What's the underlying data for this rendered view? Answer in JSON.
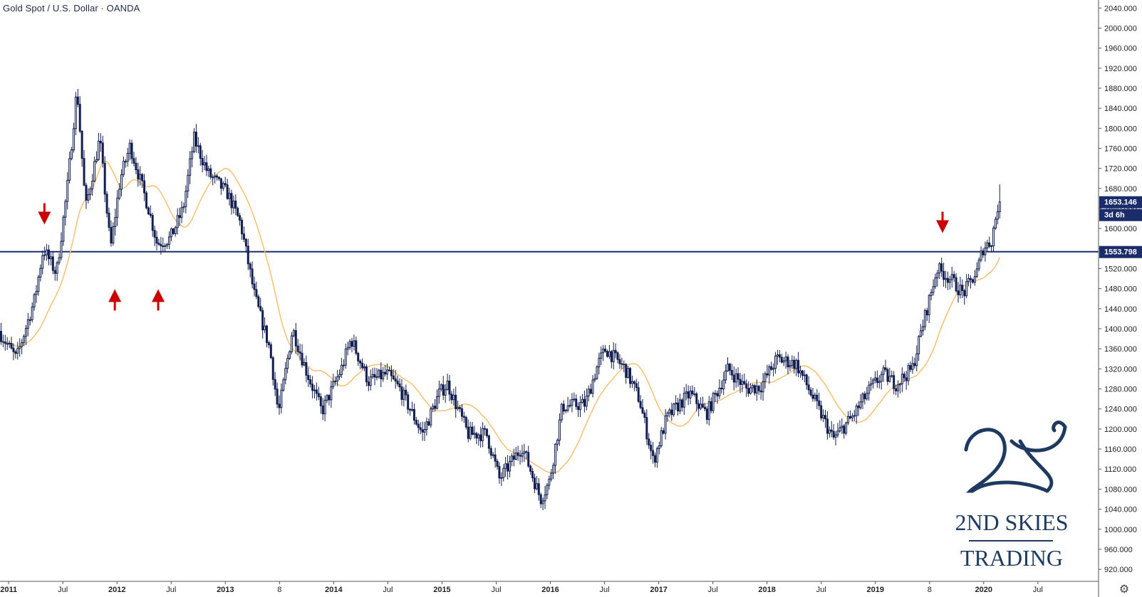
{
  "header": {
    "title": "Gold Spot / U.S. Dollar · OANDA"
  },
  "watermark": {
    "line1": "2ND SKIES",
    "line2": "TRADING",
    "logo_glyph": "2S"
  },
  "colors": {
    "candle": "#131f4f",
    "ma": "#f5c071",
    "level": "#1b2c6b",
    "arrow": "#cc0000",
    "axis_text": "#222222",
    "brand": "#1e3a5f"
  },
  "price_labels": {
    "last": "1653.146",
    "countdown": "3d 6h",
    "level": "1553.798"
  },
  "icons": {
    "settings": "gear-icon"
  },
  "chart_data": {
    "type": "candlestick",
    "title": "Gold Spot / U.S. Dollar · OANDA",
    "ylim": [
      896,
      2056
    ],
    "y_ticks": [
      920,
      960,
      1000,
      1040,
      1080,
      1120,
      1160,
      1200,
      1240,
      1280,
      1320,
      1360,
      1400,
      1440,
      1480,
      1520,
      1560,
      1600,
      1640,
      1680,
      1720,
      1760,
      1800,
      1840,
      1880,
      1920,
      1960,
      2000,
      2040
    ],
    "x_range": [
      2010.92,
      2021.06
    ],
    "x_ticks": [
      {
        "label": "2011",
        "t": 2011.0
      },
      {
        "label": "Jul",
        "t": 2011.5
      },
      {
        "label": "2012",
        "t": 2012.0
      },
      {
        "label": "Jul",
        "t": 2012.5
      },
      {
        "label": "2013",
        "t": 2013.0
      },
      {
        "label": "8",
        "t": 2013.5
      },
      {
        "label": "2014",
        "t": 2014.0
      },
      {
        "label": "Jul",
        "t": 2014.5
      },
      {
        "label": "2015",
        "t": 2015.0
      },
      {
        "label": "Jul",
        "t": 2015.5
      },
      {
        "label": "2016",
        "t": 2016.0
      },
      {
        "label": "Jul",
        "t": 2016.5
      },
      {
        "label": "2017",
        "t": 2017.0
      },
      {
        "label": "Jul",
        "t": 2017.5
      },
      {
        "label": "2018",
        "t": 2018.0
      },
      {
        "label": "Jul",
        "t": 2018.5
      },
      {
        "label": "2019",
        "t": 2019.0
      },
      {
        "label": "8",
        "t": 2019.5
      },
      {
        "label": "2020",
        "t": 2020.0
      },
      {
        "label": "Jul",
        "t": 2020.5
      }
    ],
    "price_anchors": [
      [
        2010.92,
        1395
      ],
      [
        2011.08,
        1340
      ],
      [
        2011.25,
        1460
      ],
      [
        2011.33,
        1560
      ],
      [
        2011.45,
        1510
      ],
      [
        2011.55,
        1680
      ],
      [
        2011.64,
        1880
      ],
      [
        2011.72,
        1640
      ],
      [
        2011.85,
        1780
      ],
      [
        2011.95,
        1560
      ],
      [
        2012.04,
        1700
      ],
      [
        2012.13,
        1765
      ],
      [
        2012.3,
        1640
      ],
      [
        2012.38,
        1570
      ],
      [
        2012.5,
        1580
      ],
      [
        2012.62,
        1640
      ],
      [
        2012.72,
        1780
      ],
      [
        2012.85,
        1710
      ],
      [
        2013.03,
        1670
      ],
      [
        2013.15,
        1610
      ],
      [
        2013.28,
        1465
      ],
      [
        2013.42,
        1360
      ],
      [
        2013.5,
        1230
      ],
      [
        2013.63,
        1400
      ],
      [
        2013.75,
        1320
      ],
      [
        2013.9,
        1235
      ],
      [
        2014.08,
        1320
      ],
      [
        2014.17,
        1380
      ],
      [
        2014.33,
        1295
      ],
      [
        2014.5,
        1310
      ],
      [
        2014.62,
        1280
      ],
      [
        2014.83,
        1190
      ],
      [
        2014.98,
        1270
      ],
      [
        2015.06,
        1290
      ],
      [
        2015.25,
        1190
      ],
      [
        2015.42,
        1190
      ],
      [
        2015.54,
        1100
      ],
      [
        2015.75,
        1165
      ],
      [
        2015.92,
        1060
      ],
      [
        2016.0,
        1095
      ],
      [
        2016.12,
        1245
      ],
      [
        2016.33,
        1250
      ],
      [
        2016.45,
        1330
      ],
      [
        2016.52,
        1360
      ],
      [
        2016.7,
        1320
      ],
      [
        2016.83,
        1260
      ],
      [
        2016.96,
        1135
      ],
      [
        2017.08,
        1220
      ],
      [
        2017.2,
        1250
      ],
      [
        2017.3,
        1270
      ],
      [
        2017.45,
        1230
      ],
      [
        2017.65,
        1320
      ],
      [
        2017.82,
        1280
      ],
      [
        2017.95,
        1285
      ],
      [
        2018.1,
        1340
      ],
      [
        2018.28,
        1330
      ],
      [
        2018.45,
        1255
      ],
      [
        2018.62,
        1180
      ],
      [
        2018.8,
        1225
      ],
      [
        2018.96,
        1280
      ],
      [
        2019.08,
        1310
      ],
      [
        2019.2,
        1290
      ],
      [
        2019.35,
        1320
      ],
      [
        2019.45,
        1410
      ],
      [
        2019.58,
        1520
      ],
      [
        2019.7,
        1500
      ],
      [
        2019.82,
        1470
      ],
      [
        2019.95,
        1515
      ],
      [
        2020.0,
        1560
      ],
      [
        2020.08,
        1575
      ],
      [
        2020.14,
        1645
      ]
    ],
    "moving_average": {
      "type": "SMA",
      "period": 20
    },
    "horizontal_level": 1553.798,
    "last_price": 1653.146,
    "annotations": [
      {
        "type": "down-arrow",
        "t": 2011.33,
        "price": 1625
      },
      {
        "type": "up-arrow",
        "t": 2011.98,
        "price": 1462
      },
      {
        "type": "up-arrow",
        "t": 2012.38,
        "price": 1462
      },
      {
        "type": "down-arrow",
        "t": 2019.62,
        "price": 1608
      }
    ]
  }
}
